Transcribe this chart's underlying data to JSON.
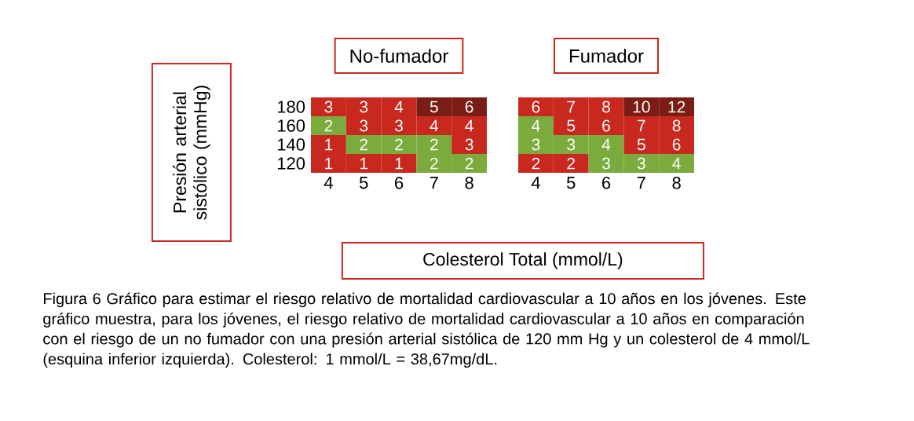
{
  "chart_data": [
    {
      "type": "heatmap",
      "title": "No-fumador",
      "ylabel": "Presión arterial sistólico (mmHg)",
      "xlabel": "Colesterol Total (mmol/L)",
      "categories": [
        "4",
        "5",
        "6",
        "7",
        "8"
      ],
      "y_categories": [
        "180",
        "160",
        "140",
        "120"
      ],
      "cells": [
        [
          3,
          3,
          4,
          5,
          6
        ],
        [
          2,
          3,
          3,
          4,
          4
        ],
        [
          1,
          2,
          2,
          2,
          3
        ],
        [
          1,
          1,
          1,
          2,
          2
        ]
      ],
      "colors": [
        [
          "#c8281e",
          "#c8281e",
          "#c8281e",
          "#7a1d14",
          "#7a1d14"
        ],
        [
          "#7aab3c",
          "#c8281e",
          "#c8281e",
          "#c8281e",
          "#c8281e"
        ],
        [
          "#c8281e",
          "#7aab3c",
          "#7aab3c",
          "#7aab3c",
          "#c8281e"
        ],
        [
          "#c8281e",
          "#c8281e",
          "#c8281e",
          "#7aab3c",
          "#7aab3c"
        ]
      ],
      "data_labels": true,
      "annotations": [
        "Figura 6 Gráfico para estimar el riesgo relativo de mortalidad cardiovascular a 10 años en los jóvenes. Este gráfico muestra, para los jóvenes, el riesgo relativo de mortalidad cardiovascular a 10 años en comparación con el riesgo de un no fumador con una presión arterial sistólica de 120 mm Hg y un colesterol de 4 mmol/L (esquina inferior izquierda). Colesterol: 1 mmol/L = 38,67mg/dL."
      ]
    },
    {
      "type": "heatmap",
      "title": "Fumador",
      "categories": [
        "4",
        "5",
        "6",
        "7",
        "8"
      ],
      "y_categories": [
        "180",
        "160",
        "140",
        "120"
      ],
      "cells": [
        [
          6,
          7,
          8,
          10,
          12
        ],
        [
          4,
          5,
          6,
          7,
          8
        ],
        [
          3,
          3,
          4,
          5,
          6
        ],
        [
          2,
          2,
          3,
          3,
          4
        ]
      ],
      "colors": [
        [
          "#c8281e",
          "#c8281e",
          "#c8281e",
          "#7a1d14",
          "#7a1d14"
        ],
        [
          "#7aab3c",
          "#c8281e",
          "#c8281e",
          "#c8281e",
          "#c8281e"
        ],
        [
          "#7aab3c",
          "#7aab3c",
          "#7aab3c",
          "#c8281e",
          "#c8281e"
        ],
        [
          "#c8281e",
          "#c8281e",
          "#7aab3c",
          "#7aab3c",
          "#7aab3c"
        ]
      ],
      "data_labels": true,
      "tick_labels": "x"
    }
  ]
}
